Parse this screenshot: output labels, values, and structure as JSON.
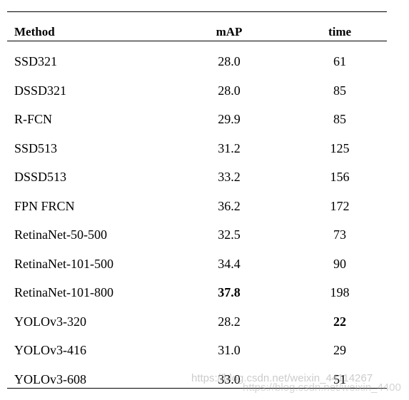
{
  "table": {
    "headers": {
      "method": "Method",
      "map": "mAP",
      "time": "time"
    },
    "rows": [
      {
        "method": "SSD321",
        "map": "28.0",
        "time": "61",
        "map_bold": false,
        "time_bold": false
      },
      {
        "method": "DSSD321",
        "map": "28.0",
        "time": "85",
        "map_bold": false,
        "time_bold": false
      },
      {
        "method": "R-FCN",
        "map": "29.9",
        "time": "85",
        "map_bold": false,
        "time_bold": false
      },
      {
        "method": "SSD513",
        "map": "31.2",
        "time": "125",
        "map_bold": false,
        "time_bold": false
      },
      {
        "method": "DSSD513",
        "map": "33.2",
        "time": "156",
        "map_bold": false,
        "time_bold": false
      },
      {
        "method": "FPN FRCN",
        "map": "36.2",
        "time": "172",
        "map_bold": false,
        "time_bold": false
      },
      {
        "method": "RetinaNet-50-500",
        "map": "32.5",
        "time": "73",
        "map_bold": false,
        "time_bold": false
      },
      {
        "method": "RetinaNet-101-500",
        "map": "34.4",
        "time": "90",
        "map_bold": false,
        "time_bold": false
      },
      {
        "method": "RetinaNet-101-800",
        "map": "37.8",
        "time": "198",
        "map_bold": true,
        "time_bold": false
      },
      {
        "method": "YOLOv3-320",
        "map": "28.2",
        "time": "22",
        "map_bold": false,
        "time_bold": true
      },
      {
        "method": "YOLOv3-416",
        "map": "31.0",
        "time": "29",
        "map_bold": false,
        "time_bold": false
      },
      {
        "method": "YOLOv3-608",
        "map": "33.0",
        "time": "51",
        "map_bold": false,
        "time_bold": false
      }
    ]
  },
  "watermark": {
    "line1": "https://blog.csdn.net/weixin_44114267",
    "line2": "https://blog.csdn.net/weixin_4400"
  }
}
